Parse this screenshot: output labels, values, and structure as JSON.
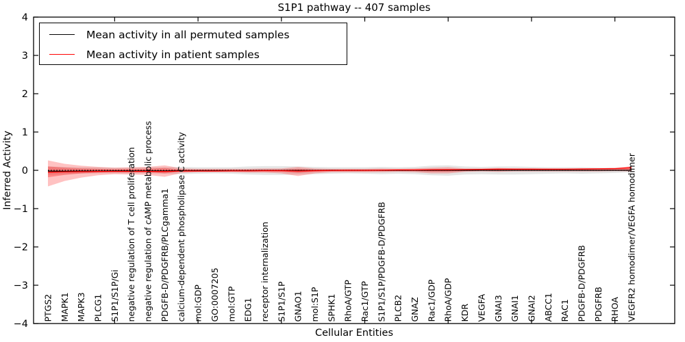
{
  "title": "S1P1 pathway -- 407 samples",
  "axes": {
    "ylabel": "Inferred Activity",
    "xlabel": "Cellular Entities",
    "ytick_labels": [
      "4",
      "3",
      "2",
      "1",
      "0",
      "−1",
      "−2",
      "−3",
      "−4"
    ],
    "ytick_values": [
      4,
      3,
      2,
      1,
      0,
      -1,
      -2,
      -3,
      -4
    ],
    "xtick_step": 5
  },
  "legend": {
    "items": [
      {
        "label": "Mean activity in all permuted samples",
        "color": "#000000"
      },
      {
        "label": "Mean activity in patient samples",
        "color": "#ff0000"
      }
    ],
    "position": "upper left"
  },
  "colors": {
    "frame": "#000000",
    "zero_line": "#000000",
    "permuted_line": "#000000",
    "patient_line": "#ff0000",
    "permuted_band": "#000000",
    "patient_band": "#ff0000"
  },
  "chart_data": {
    "type": "line",
    "title": "S1P1 pathway -- 407 samples",
    "xlabel": "Cellular Entities",
    "ylabel": "Inferred Activity",
    "ylim": [
      -4,
      4
    ],
    "grid": false,
    "zero_line": true,
    "legend_position": "upper left",
    "categories": [
      "PTGS2",
      "MAPK1",
      "MAPK3",
      "PLCG1",
      "S1P1/S1P/Gi",
      "negative regulation of T cell proliferation",
      "negative regulation of cAMP metabolic process",
      "PDGFB-D/PDGFRB/PLCgamma1",
      "calcium-dependent phospholipase C activity",
      "mol:GDP",
      "GO:0007205",
      "mol:GTP",
      "EDG1",
      "receptor internalization",
      "S1P1/S1P",
      "GNAO1",
      "mol:S1P",
      "SPHK1",
      "RhoA/GTP",
      "Rac1/GTP",
      "S1P1/S1P/PDGFB-D/PDGFRB",
      "PLCB2",
      "GNAZ",
      "Rac1/GDP",
      "RhoA/GDP",
      "KDR",
      "VEGFA",
      "GNAI3",
      "GNAI1",
      "GNAI2",
      "ABCC1",
      "RAC1",
      "PDGFB-D/PDGFRB",
      "PDGFRB",
      "RHOA",
      "VEGFR2 homodimer/VEGFA homodimer"
    ],
    "series": [
      {
        "name": "Mean activity in all permuted samples",
        "slug": "permuted-mean-line",
        "color": "#000000",
        "values": [
          -0.02,
          -0.025,
          -0.02,
          -0.02,
          -0.015,
          -0.015,
          -0.015,
          -0.015,
          -0.01,
          -0.01,
          -0.01,
          -0.01,
          -0.01,
          -0.005,
          -0.005,
          -0.005,
          -0.005,
          0,
          0,
          0,
          0,
          0,
          0,
          0,
          0,
          0,
          0,
          0,
          0,
          0,
          0,
          0,
          0,
          0,
          0,
          0
        ]
      },
      {
        "name": "Mean activity in patient samples",
        "slug": "patient-mean-line",
        "color": "#ff0000",
        "values": [
          -0.05,
          -0.04,
          -0.035,
          -0.03,
          -0.03,
          -0.03,
          -0.03,
          -0.03,
          -0.02,
          -0.02,
          -0.02,
          -0.015,
          -0.015,
          -0.01,
          -0.01,
          -0.02,
          -0.01,
          -0.005,
          0,
          0,
          0.005,
          0.01,
          0.01,
          0.015,
          0.015,
          0.02,
          0.025,
          0.03,
          0.03,
          0.03,
          0.03,
          0.03,
          0.035,
          0.04,
          0.045,
          0.07
        ]
      }
    ],
    "bands": [
      {
        "name": "permuted-envelope",
        "color": "#000000",
        "opacity": 0.1,
        "upper": [
          0.1,
          0.09,
          0.08,
          0.08,
          0.07,
          0.07,
          0.08,
          0.08,
          0.09,
          0.08,
          0.08,
          0.08,
          0.1,
          0.11,
          0.11,
          0.1,
          0.09,
          0.08,
          0.08,
          0.08,
          0.09,
          0.08,
          0.09,
          0.12,
          0.13,
          0.1,
          0.09,
          0.1,
          0.1,
          0.09,
          0.08,
          0.08,
          0.08,
          0.07,
          0.06,
          0.05
        ],
        "lower": [
          -0.12,
          -0.1,
          -0.09,
          -0.08,
          -0.08,
          -0.08,
          -0.08,
          -0.09,
          -0.1,
          -0.09,
          -0.08,
          -0.09,
          -0.11,
          -0.12,
          -0.12,
          -0.11,
          -0.1,
          -0.09,
          -0.08,
          -0.09,
          -0.1,
          -0.09,
          -0.1,
          -0.13,
          -0.14,
          -0.11,
          -0.1,
          -0.11,
          -0.11,
          -0.1,
          -0.09,
          -0.08,
          -0.09,
          -0.08,
          -0.07,
          -0.05
        ]
      },
      {
        "name": "patient-envelope-outer",
        "color": "#ff0000",
        "opacity": 0.24,
        "upper": [
          0.26,
          0.17,
          0.12,
          0.09,
          0.07,
          0.08,
          0.09,
          0.13,
          0.05,
          0.04,
          0.04,
          0.04,
          0.04,
          0.05,
          0.05,
          0.09,
          0.05,
          0.04,
          0.04,
          0.04,
          0.05,
          0.04,
          0.05,
          0.07,
          0.08,
          0.05,
          0.05,
          0.06,
          0.05,
          0.05,
          0.04,
          0.04,
          0.05,
          0.05,
          0.06,
          0.11
        ],
        "lower": [
          -0.42,
          -0.28,
          -0.19,
          -0.13,
          -0.1,
          -0.11,
          -0.12,
          -0.17,
          -0.07,
          -0.05,
          -0.05,
          -0.05,
          -0.06,
          -0.06,
          -0.08,
          -0.15,
          -0.08,
          -0.05,
          -0.05,
          -0.05,
          -0.05,
          -0.04,
          -0.05,
          -0.08,
          -0.08,
          -0.04,
          -0.03,
          -0.04,
          -0.03,
          -0.03,
          -0.03,
          -0.03,
          -0.03,
          -0.03,
          -0.02,
          -0.03
        ]
      },
      {
        "name": "patient-envelope-inner",
        "color": "#ff0000",
        "opacity": 0.3,
        "upper": [
          0.1,
          0.07,
          0.05,
          0.04,
          0.03,
          0.035,
          0.04,
          0.06,
          0.02,
          0.02,
          0.02,
          0.02,
          0.02,
          0.02,
          0.02,
          0.04,
          0.02,
          0.02,
          0.02,
          0.02,
          0.02,
          0.02,
          0.02,
          0.03,
          0.035,
          0.02,
          0.02,
          0.025,
          0.02,
          0.02,
          0.02,
          0.02,
          0.025,
          0.03,
          0.035,
          0.06
        ],
        "lower": [
          -0.18,
          -0.12,
          -0.08,
          -0.06,
          -0.04,
          -0.045,
          -0.05,
          -0.08,
          -0.03,
          -0.025,
          -0.025,
          -0.025,
          -0.03,
          -0.03,
          -0.035,
          -0.07,
          -0.035,
          -0.025,
          -0.025,
          -0.025,
          -0.02,
          -0.02,
          -0.02,
          -0.035,
          -0.035,
          -0.02,
          -0.01,
          -0.015,
          -0.01,
          -0.01,
          -0.01,
          -0.01,
          -0.01,
          -0.01,
          -0.005,
          -0.01
        ]
      }
    ]
  }
}
